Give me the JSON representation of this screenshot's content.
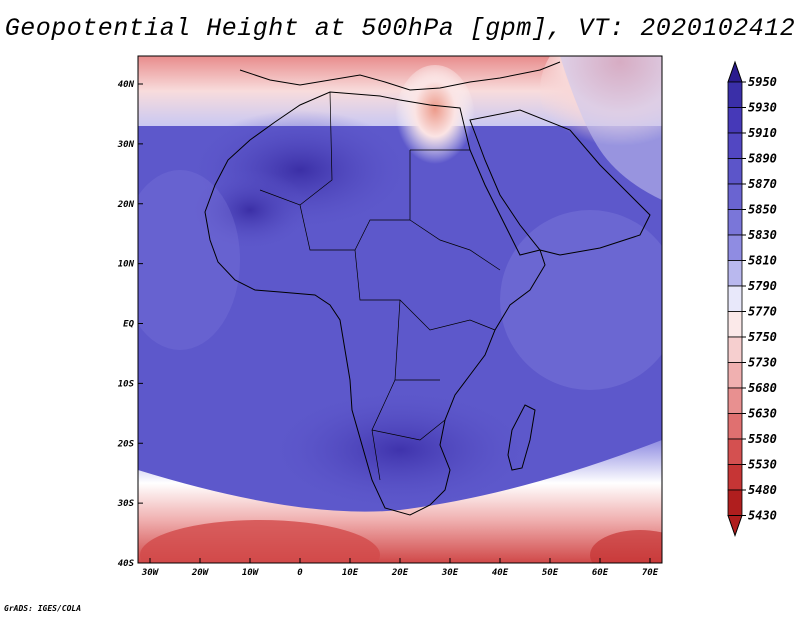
{
  "title": "Geopotential Height at 500hPa [gpm], VT: 2020102412",
  "credit": "GrADS: IGES/COLA",
  "map": {
    "region": "Africa",
    "variable": "Geopotential Height",
    "level": "500hPa",
    "units": "gpm",
    "valid_time": "2020102412",
    "lon_ticks": [
      "30W",
      "20W",
      "10W",
      "0",
      "10E",
      "20E",
      "30E",
      "40E",
      "50E",
      "60E",
      "70E"
    ],
    "lat_ticks": [
      "40N",
      "30N",
      "20N",
      "10N",
      "EQ",
      "10S",
      "20S",
      "30S",
      "40S"
    ]
  },
  "colorbar": {
    "levels": [
      "5950",
      "5930",
      "5910",
      "5890",
      "5870",
      "5850",
      "5830",
      "5810",
      "5790",
      "5770",
      "5750",
      "5730",
      "5680",
      "5630",
      "5580",
      "5530",
      "5480",
      "5430"
    ],
    "colors": [
      "#2b1b8e",
      "#3a2fa8",
      "#4639b8",
      "#5247c2",
      "#5c55c9",
      "#6a64d1",
      "#7a76d9",
      "#8f8ce2",
      "#b9b8ee",
      "#e8e8fa",
      "#fbe9e9",
      "#f6cfcf",
      "#f0b0b0",
      "#e89090",
      "#e07070",
      "#d45050",
      "#c63535",
      "#b01e1e"
    ]
  }
}
